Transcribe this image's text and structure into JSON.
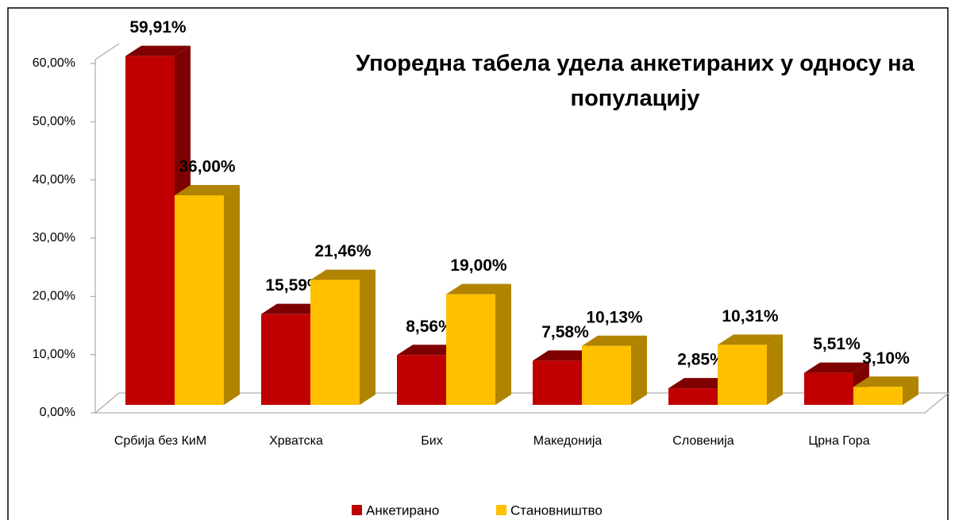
{
  "chart_data": {
    "type": "bar3d",
    "title": "Упоредна табела удела анкетираних у односу на популацију",
    "categories": [
      "Србија без КиМ",
      "Хрватска",
      "Бих",
      "Македонија",
      "Словенија",
      "Црна Гора"
    ],
    "series": [
      {
        "name": "Анкетирано",
        "color": "#c00000",
        "side": "#7f0000",
        "values": [
          59.91,
          15.59,
          8.56,
          7.58,
          2.85,
          5.51
        ],
        "value_labels": [
          "59,91%",
          "15,59%",
          "8,56%",
          "7,58%",
          "2,85%",
          "5,51%"
        ]
      },
      {
        "name": "Становништво",
        "color": "#ffc000",
        "side": "#b08400",
        "values": [
          36.0,
          21.46,
          19.0,
          10.13,
          10.31,
          3.1
        ],
        "value_labels": [
          "36,00%",
          "21,46%",
          "19,00%",
          "10,13%",
          "10,31%",
          "3,10%"
        ]
      }
    ],
    "ylim": [
      0,
      60
    ],
    "yticks": [
      {
        "value": 0,
        "label": "0,00%"
      },
      {
        "value": 10,
        "label": "10,00%"
      },
      {
        "value": 20,
        "label": "20,00%"
      },
      {
        "value": 30,
        "label": "30,00%"
      },
      {
        "value": 40,
        "label": "40,00%"
      },
      {
        "value": 50,
        "label": "50,00%"
      },
      {
        "value": 60,
        "label": "60,00%"
      }
    ],
    "legend": "bottom"
  }
}
